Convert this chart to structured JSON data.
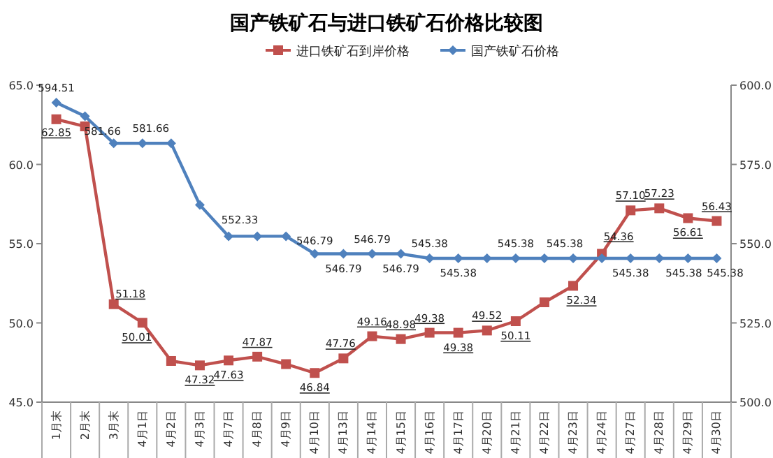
{
  "chart_data": {
    "type": "line",
    "title": "国产铁矿石与进口铁矿石价格比较图",
    "categories": [
      "1月末",
      "2月末",
      "3月末",
      "4月1日",
      "4月2日",
      "4月3日",
      "4月7日",
      "4月8日",
      "4月9日",
      "4月10日",
      "4月13日",
      "4月14日",
      "4月15日",
      "4月16日",
      "4月17日",
      "4月20日",
      "4月21日",
      "4月22日",
      "4月23日",
      "4月24日",
      "4月27日",
      "4月28日",
      "4月29日",
      "4月30日"
    ],
    "series": [
      {
        "name": "进口铁矿石到岸价格",
        "color": "#c0504d",
        "marker": "square",
        "values": [
          62.85,
          62.4,
          51.18,
          50.01,
          47.6,
          47.32,
          47.63,
          47.87,
          47.4,
          46.84,
          47.76,
          49.16,
          48.98,
          49.38,
          49.38,
          49.52,
          50.11,
          51.3,
          52.34,
          54.36,
          57.1,
          57.23,
          56.61,
          56.43
        ],
        "value_labels": [
          "62.85",
          null,
          "51.18",
          "50.01",
          null,
          "47.32",
          "47.63",
          "47.87",
          null,
          "46.84",
          "47.76",
          "49.16",
          "48.98",
          "49.38",
          "49.38",
          "49.52",
          "50.11",
          null,
          "52.34",
          "54.36",
          "57.10",
          "57.23",
          "56.61",
          "56.43"
        ]
      },
      {
        "name": "国产铁矿石价格",
        "color": "#4f81bd",
        "marker": "diamond",
        "axis": "y2",
        "values": [
          594.51,
          590.2,
          581.66,
          581.66,
          581.66,
          562.2,
          552.33,
          552.33,
          552.33,
          546.79,
          546.79,
          546.79,
          546.79,
          545.38,
          545.38,
          545.38,
          545.38,
          545.38,
          545.38,
          545.38,
          545.38,
          545.38,
          545.38,
          545.38
        ],
        "value_labels": [
          "594.51",
          null,
          "581.66",
          "581.66",
          null,
          null,
          "552.33",
          null,
          null,
          "546.79",
          "546.79",
          "546.79",
          "546.79",
          "545.38",
          "545.38",
          null,
          "545.38",
          null,
          "545.38",
          null,
          "545.38",
          null,
          "545.38",
          "545.38"
        ]
      }
    ],
    "ylim": [
      45,
      65
    ],
    "yticks": [
      {
        "value": 45,
        "label": "45.0"
      },
      {
        "value": 50,
        "label": "50.0"
      },
      {
        "value": 55,
        "label": "55.0"
      },
      {
        "value": 60,
        "label": "60.0"
      },
      {
        "value": 65,
        "label": "65.0"
      }
    ],
    "y2lim": [
      500,
      600
    ],
    "y2ticks": [
      {
        "value": 500,
        "label": "500.0"
      },
      {
        "value": 525,
        "label": "525.0"
      },
      {
        "value": 550,
        "label": "550.0"
      },
      {
        "value": 575,
        "label": "575.0"
      },
      {
        "value": 600,
        "label": "600.0"
      }
    ],
    "legend": "top",
    "grid": false
  }
}
